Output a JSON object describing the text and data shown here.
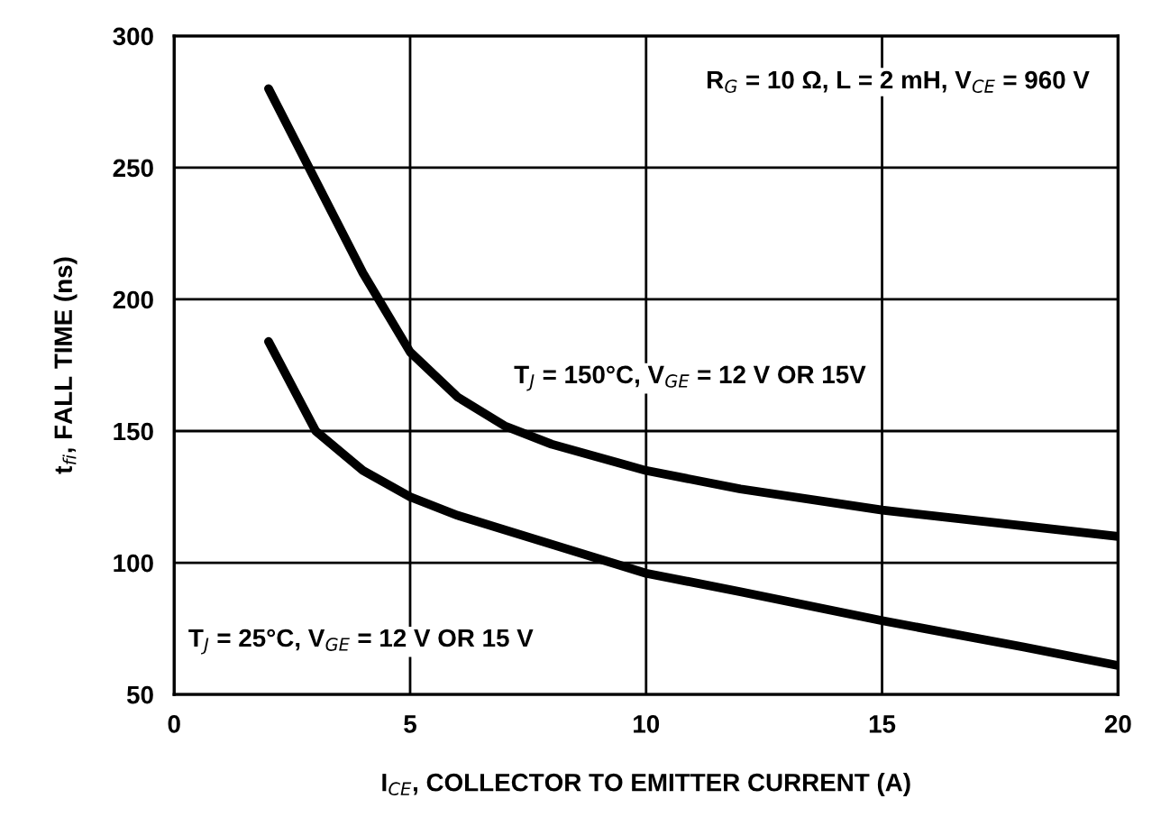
{
  "chart_data": {
    "type": "line",
    "xlabel": "I$_{CE}$, COLLECTOR TO EMITTER CURRENT (A)",
    "ylabel": "t$_{fi}$, FALL TIME (ns)",
    "xlim": [
      0,
      20
    ],
    "ylim": [
      50,
      300
    ],
    "xticks": [
      0,
      5,
      10,
      15,
      20
    ],
    "yticks": [
      50,
      100,
      150,
      200,
      250,
      300
    ],
    "grid": true,
    "legend": false,
    "series": [
      {
        "color": "#000000",
        "x": [
          2,
          3,
          4,
          5,
          6,
          7,
          8,
          10,
          12,
          15,
          18,
          20
        ],
        "values": [
          280,
          245,
          210,
          180,
          163,
          152,
          145,
          135,
          128,
          120,
          114,
          110
        ]
      },
      {
        "color": "#000000",
        "x": [
          2,
          3,
          4,
          5,
          6,
          8,
          10,
          12,
          15,
          18,
          20
        ],
        "values": [
          184,
          150,
          135,
          125,
          118,
          107,
          96,
          89,
          78,
          68,
          61
        ]
      }
    ],
    "annotations": [
      "R$_{G}$ = 10 Ω, L = 2 mH, V$_{CE}$ = 960 V",
      "T$_{J}$ = 150°C, V$_{GE}$ = 12 V OR 15V",
      "T$_{J}$ = 25°C, V$_{GE}$ = 12 V OR 15 V"
    ]
  }
}
